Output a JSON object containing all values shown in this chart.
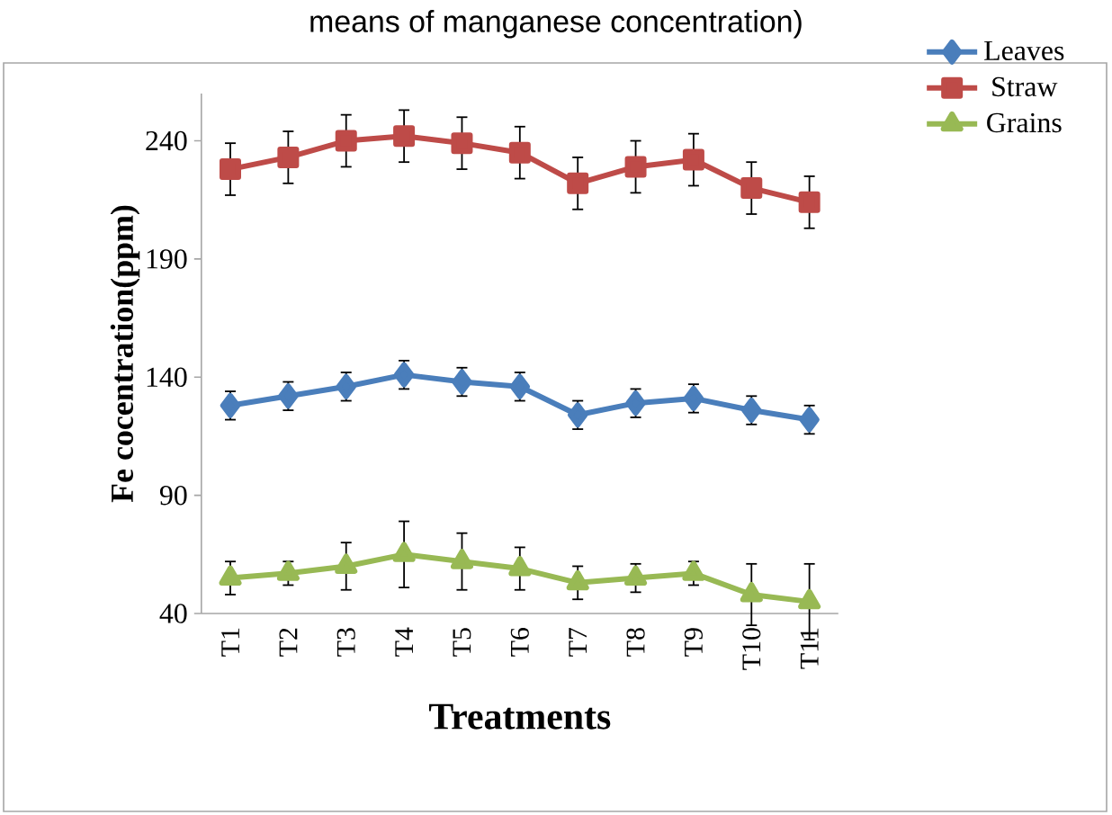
{
  "chart_data": {
    "type": "line",
    "title": "means of manganese concentration)",
    "xlabel": "Treatments",
    "ylabel": "Fe cocentration(ppm)",
    "categories": [
      "T1",
      "T2",
      "T3",
      "T4",
      "T5",
      "T6",
      "T7",
      "T8",
      "T9",
      "T10",
      "T11"
    ],
    "series": [
      {
        "name": "Leaves",
        "color": "#4a7ebb",
        "marker": "diamond",
        "values": [
          128,
          132,
          136,
          141,
          138,
          136,
          124,
          129,
          131,
          126,
          122
        ],
        "errors": [
          6,
          6,
          6,
          6,
          6,
          6,
          6,
          6,
          6,
          6,
          6
        ]
      },
      {
        "name": "Straw",
        "color": "#be4b48",
        "marker": "square",
        "values": [
          228,
          233,
          240,
          242,
          239,
          235,
          222,
          229,
          232,
          220,
          214
        ],
        "errors": [
          11,
          11,
          11,
          11,
          11,
          11,
          11,
          11,
          11,
          11,
          11
        ]
      },
      {
        "name": "Grains",
        "color": "#98b954",
        "marker": "triangle",
        "values": [
          55,
          57,
          60,
          65,
          62,
          59,
          53,
          55,
          57,
          48,
          45
        ],
        "errors": [
          7,
          5,
          10,
          14,
          12,
          9,
          7,
          6,
          5,
          13,
          16
        ]
      }
    ],
    "ylim": [
      40,
      260
    ],
    "yticks": [
      40,
      90,
      140,
      190,
      240
    ],
    "legend": "top right",
    "grid": false
  }
}
